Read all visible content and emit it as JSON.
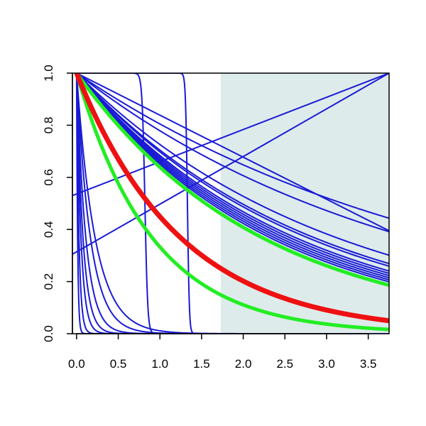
{
  "chart_data": {
    "type": "line",
    "title": "",
    "xlabel": "",
    "ylabel": "",
    "xlim": [
      -0.05,
      3.75
    ],
    "ylim": [
      0.0,
      1.0
    ],
    "x_ticks": [
      "0.0",
      "0.5",
      "1.0",
      "1.5",
      "2.0",
      "2.5",
      "3.0",
      "3.5"
    ],
    "y_ticks": [
      "0.0",
      "0.2",
      "0.4",
      "0.6",
      "0.8",
      "1.0"
    ],
    "grid": false,
    "legend": "none",
    "shaded_region": {
      "x_from": 1.73,
      "x_to": 3.75,
      "color": "#deebeb"
    },
    "colors": {
      "blue": "#1a1ad6",
      "red": "#ee1111",
      "green": "#22ee22",
      "shade": "#deebeb"
    },
    "series": [
      {
        "kind": "exp",
        "rate": 0.217,
        "color": "#1a1ad6",
        "width": 2
      },
      {
        "kind": "exp",
        "rate": 0.25,
        "color": "#1a1ad6",
        "width": 2
      },
      {
        "kind": "exp",
        "rate": 0.32,
        "color": "#1a1ad6",
        "width": 2
      },
      {
        "kind": "exp",
        "rate": 0.35,
        "color": "#1a1ad6",
        "width": 2
      },
      {
        "kind": "exp",
        "rate": 0.36,
        "color": "#1a1ad6",
        "width": 2
      },
      {
        "kind": "exp",
        "rate": 0.38,
        "color": "#1a1ad6",
        "width": 2
      },
      {
        "kind": "exp",
        "rate": 0.39,
        "color": "#1a1ad6",
        "width": 2
      },
      {
        "kind": "exp",
        "rate": 0.4,
        "color": "#1a1ad6",
        "width": 2
      },
      {
        "kind": "exp",
        "rate": 0.41,
        "color": "#1a1ad6",
        "width": 2
      },
      {
        "kind": "exp",
        "rate": 0.42,
        "color": "#1a1ad6",
        "width": 2
      },
      {
        "kind": "exp",
        "rate": 0.43,
        "color": "#1a1ad6",
        "width": 2
      },
      {
        "kind": "exp",
        "rate": 4.5,
        "color": "#1a1ad6",
        "width": 2
      },
      {
        "kind": "exp",
        "rate": 6.0,
        "color": "#1a1ad6",
        "width": 2
      },
      {
        "kind": "exp",
        "rate": 9.0,
        "color": "#1a1ad6",
        "width": 2
      },
      {
        "kind": "exp",
        "rate": 13.0,
        "color": "#1a1ad6",
        "width": 2
      },
      {
        "kind": "exp",
        "rate": 19.0,
        "color": "#1a1ad6",
        "width": 2
      },
      {
        "kind": "exp",
        "rate": 35.0,
        "color": "#1a1ad6",
        "width": 2
      },
      {
        "kind": "exp",
        "rate": 80.0,
        "color": "#1a1ad6",
        "width": 2
      },
      {
        "kind": "sigmoid",
        "center": 0.82,
        "steepness": 60,
        "color": "#1a1ad6",
        "width": 2
      },
      {
        "kind": "sigmoid",
        "center": 1.33,
        "steepness": 90,
        "color": "#1a1ad6",
        "width": 2
      },
      {
        "kind": "linear",
        "x": [
          -0.05,
          3.75
        ],
        "y": [
          0.53,
          1.0
        ],
        "color": "#1a1ad6",
        "width": 2
      },
      {
        "kind": "linear",
        "x": [
          -0.05,
          3.75
        ],
        "y": [
          0.305,
          1.0
        ],
        "color": "#1a1ad6",
        "width": 2
      },
      {
        "kind": "linear",
        "x": [
          0.0,
          3.75
        ],
        "y": [
          1.0,
          0.395
        ],
        "color": "#1a1ad6",
        "width": 2
      },
      {
        "kind": "exp",
        "rate": 0.448,
        "color": "#22ee22",
        "width": 5
      },
      {
        "kind": "exp",
        "rate": 1.1,
        "color": "#22ee22",
        "width": 5
      },
      {
        "kind": "exp",
        "rate": 0.8,
        "color": "#ee1111",
        "width": 7
      }
    ]
  }
}
